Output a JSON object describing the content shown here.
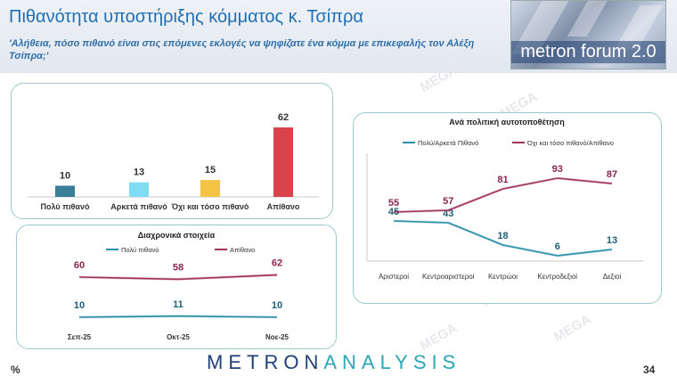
{
  "header": {
    "title": "Πιθανότητα υποστήριξης κόμματος κ. Τσίπρα",
    "subtitle": "'Αλήθεια, πόσο πιθανό είναι στις επόμενες εκλογές να ψηφίζατε ένα κόμμα με επικεφαλής τον Αλέξη Τσίπρα;'"
  },
  "logo": {
    "text": "metron forum 2.0"
  },
  "footer": {
    "brand_a": "METRON",
    "brand_b": "ANALYSIS",
    "percent_sign": "%",
    "page_number": "34"
  },
  "watermark": "MEGA",
  "chart_data": [
    {
      "type": "bar",
      "categories": [
        "Πολύ πιθανό",
        "Αρκετά πιθανό",
        "Όχι και τόσο πιθανό",
        "Απίθανο"
      ],
      "values": [
        10,
        13,
        15,
        62
      ],
      "colors": [
        "#3a7f95",
        "#7fdcf5",
        "#f5c343",
        "#d9434b"
      ],
      "ylim": [
        0,
        62
      ]
    },
    {
      "type": "line",
      "title": "Διαχρονικά στοιχεία",
      "categories": [
        "Σεπ-25",
        "Οκτ-25",
        "Νοε-25"
      ],
      "series": [
        {
          "name": "Πολύ πιθανό",
          "values": [
            10,
            11,
            10
          ],
          "color": "#2a8fa8"
        },
        {
          "name": "Απίθανο",
          "values": [
            60,
            58,
            62
          ],
          "color": "#a2335e"
        }
      ],
      "legend": "top"
    },
    {
      "type": "line",
      "title": "Ανά πολιτική αυτοτοποθέτηση",
      "categories": [
        "Αριστεροί",
        "Κεντροαριστεροί",
        "Κεντρώοι",
        "Κεντροδεξιοί",
        "Δεξιοί"
      ],
      "series": [
        {
          "name": "Πολύ/Αρκετά Πιθανό",
          "values": [
            45,
            43,
            18,
            6,
            13
          ],
          "color": "#2a8fa8"
        },
        {
          "name": "Όχι και τόσο πιθανό/Απίθανο",
          "values": [
            55,
            57,
            81,
            93,
            87
          ],
          "color": "#a2335e"
        }
      ],
      "legend": "top"
    }
  ]
}
